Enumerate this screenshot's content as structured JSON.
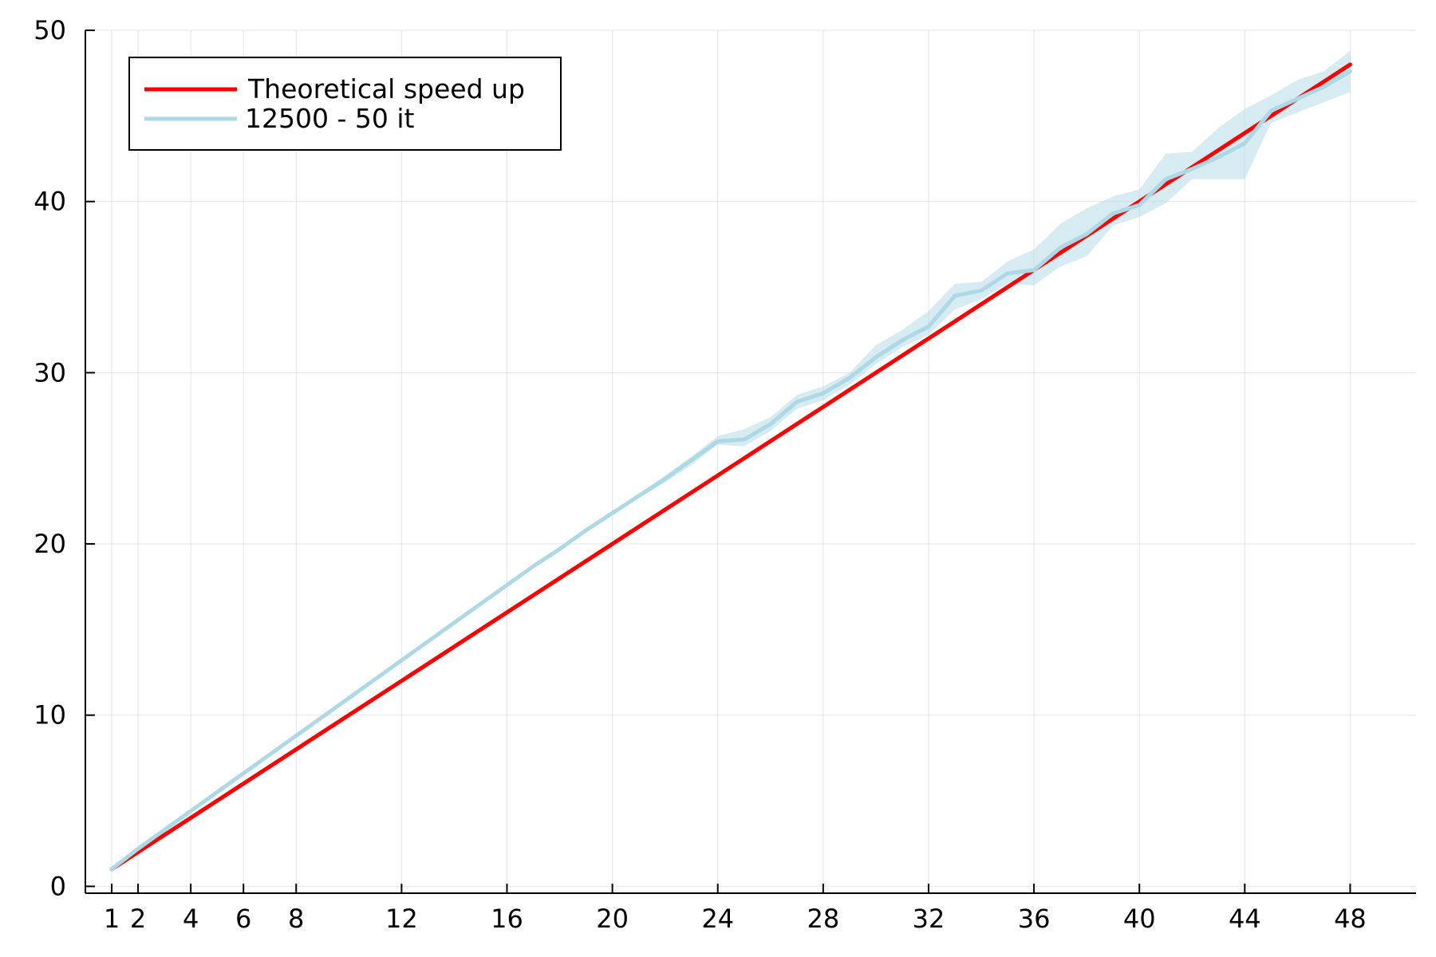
{
  "chart_data": {
    "type": "line",
    "xlim": [
      0.0,
      50.5
    ],
    "ylim": [
      -0.4,
      50.0
    ],
    "x_ticks": [
      1,
      2,
      4,
      6,
      8,
      12,
      16,
      20,
      24,
      28,
      32,
      36,
      40,
      44,
      48
    ],
    "y_ticks": [
      0,
      10,
      20,
      30,
      40,
      50
    ],
    "grid": true,
    "legend_position": "top-left",
    "series": [
      {
        "name": "Theoretical speed up",
        "color": "#ff0000",
        "x": [
          1,
          48
        ],
        "y": [
          1,
          48
        ]
      },
      {
        "name": "12500 - 50 it",
        "color": "#add8e6",
        "band_color": "#add8e6",
        "x": [
          1,
          2,
          3,
          4,
          5,
          6,
          7,
          8,
          9,
          10,
          11,
          12,
          13,
          14,
          15,
          16,
          17,
          18,
          19,
          20,
          21,
          22,
          23,
          24,
          25,
          26,
          27,
          28,
          29,
          30,
          31,
          32,
          33,
          34,
          35,
          36,
          37,
          38,
          39,
          40,
          41,
          42,
          43,
          44,
          45,
          46,
          47,
          48
        ],
        "y": [
          1.0,
          2.2,
          3.3,
          4.4,
          5.5,
          6.6,
          7.7,
          8.8,
          9.9,
          11.0,
          12.1,
          13.2,
          14.3,
          15.4,
          16.5,
          17.6,
          18.7,
          19.7,
          20.8,
          21.8,
          22.8,
          23.8,
          24.9,
          26.0,
          26.1,
          27.0,
          28.3,
          28.8,
          29.7,
          30.9,
          31.9,
          32.7,
          34.5,
          34.8,
          35.8,
          36.0,
          37.3,
          38.1,
          39.3,
          39.8,
          41.3,
          41.9,
          42.6,
          43.4,
          45.3,
          46.0,
          46.7,
          47.6
        ],
        "y_lower": [
          0.95,
          2.1,
          3.2,
          4.3,
          5.4,
          6.5,
          7.6,
          8.7,
          9.8,
          10.9,
          12.0,
          13.1,
          14.2,
          15.3,
          16.4,
          17.5,
          18.6,
          19.6,
          20.7,
          21.7,
          22.7,
          23.6,
          24.6,
          25.8,
          25.7,
          26.6,
          27.9,
          28.4,
          29.3,
          30.5,
          31.5,
          32.2,
          33.7,
          34.3,
          35.2,
          35.1,
          36.2,
          36.8,
          38.6,
          39.1,
          39.9,
          41.3,
          41.3,
          41.3,
          44.6,
          45.2,
          45.8,
          46.4
        ],
        "y_upper": [
          1.05,
          2.3,
          3.4,
          4.5,
          5.6,
          6.7,
          7.8,
          8.9,
          10.0,
          11.1,
          12.2,
          13.3,
          14.4,
          15.5,
          16.6,
          17.7,
          18.8,
          19.8,
          20.9,
          21.9,
          22.9,
          24.0,
          25.1,
          26.3,
          26.7,
          27.4,
          28.7,
          29.2,
          30.0,
          31.6,
          32.5,
          33.6,
          35.2,
          35.3,
          36.5,
          37.2,
          38.7,
          39.6,
          40.3,
          40.7,
          42.8,
          42.9,
          44.3,
          45.4,
          46.2,
          47.1,
          47.6,
          48.8
        ]
      }
    ]
  }
}
